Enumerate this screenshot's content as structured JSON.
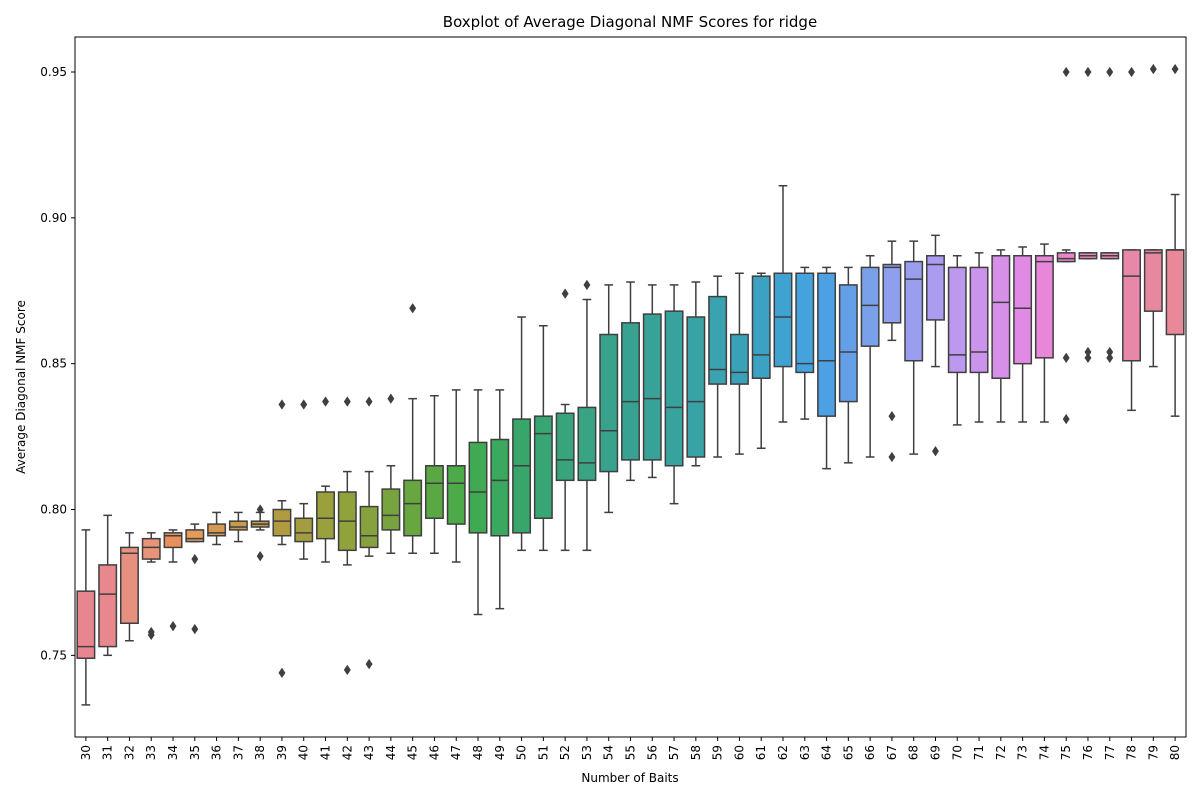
{
  "chart_data": {
    "type": "boxplot",
    "title": "Boxplot of Average Diagonal NMF Scores for ridge",
    "xlabel": "Number of Baits",
    "ylabel": "Average Diagonal NMF Score",
    "ylim": [
      0.722,
      0.962
    ],
    "yticks": [
      0.75,
      0.8,
      0.85,
      0.9,
      0.95
    ],
    "ytick_labels": [
      "0.75",
      "0.80",
      "0.85",
      "0.90",
      "0.95"
    ],
    "grid": false,
    "legend": "none",
    "categories": [
      "30",
      "31",
      "32",
      "33",
      "34",
      "35",
      "36",
      "37",
      "38",
      "39",
      "40",
      "41",
      "42",
      "43",
      "44",
      "45",
      "46",
      "47",
      "48",
      "49",
      "50",
      "51",
      "52",
      "53",
      "54",
      "55",
      "56",
      "57",
      "58",
      "59",
      "60",
      "61",
      "62",
      "63",
      "64",
      "65",
      "66",
      "67",
      "68",
      "69",
      "70",
      "71",
      "72",
      "73",
      "74",
      "75",
      "76",
      "77",
      "78",
      "79",
      "80"
    ],
    "boxes": [
      {
        "x": "30",
        "whislo": 0.733,
        "q1": 0.749,
        "med": 0.753,
        "q3": 0.772,
        "whishi": 0.793,
        "fliers": [],
        "color": "#e88690"
      },
      {
        "x": "31",
        "whislo": 0.75,
        "q1": 0.753,
        "med": 0.771,
        "q3": 0.781,
        "whishi": 0.798,
        "fliers": [],
        "color": "#e8888e"
      },
      {
        "x": "32",
        "whislo": 0.755,
        "q1": 0.761,
        "med": 0.785,
        "q3": 0.787,
        "whishi": 0.792,
        "fliers": [],
        "color": "#e8907f"
      },
      {
        "x": "33",
        "whislo": 0.782,
        "q1": 0.783,
        "med": 0.787,
        "q3": 0.79,
        "whishi": 0.792,
        "fliers": [
          0.757,
          0.758
        ],
        "color": "#e89478"
      },
      {
        "x": "34",
        "whislo": 0.782,
        "q1": 0.787,
        "med": 0.791,
        "q3": 0.792,
        "whishi": 0.793,
        "fliers": [
          0.76
        ],
        "color": "#e8905c"
      },
      {
        "x": "35",
        "whislo": 0.789,
        "q1": 0.789,
        "med": 0.79,
        "q3": 0.793,
        "whishi": 0.795,
        "fliers": [
          0.783,
          0.759
        ],
        "color": "#e39a5a"
      },
      {
        "x": "36",
        "whislo": 0.788,
        "q1": 0.791,
        "med": 0.792,
        "q3": 0.795,
        "whishi": 0.799,
        "fliers": [],
        "color": "#d49a52"
      },
      {
        "x": "37",
        "whislo": 0.789,
        "q1": 0.793,
        "med": 0.794,
        "q3": 0.796,
        "whishi": 0.799,
        "fliers": [],
        "color": "#c89a4c"
      },
      {
        "x": "38",
        "whislo": 0.793,
        "q1": 0.794,
        "med": 0.795,
        "q3": 0.796,
        "whishi": 0.799,
        "fliers": [
          0.8,
          0.784
        ],
        "color": "#bf9c4a"
      },
      {
        "x": "39",
        "whislo": 0.788,
        "q1": 0.791,
        "med": 0.796,
        "q3": 0.8,
        "whishi": 0.803,
        "fliers": [
          0.836,
          0.744
        ],
        "color": "#b19a40"
      },
      {
        "x": "40",
        "whislo": 0.783,
        "q1": 0.789,
        "med": 0.792,
        "q3": 0.797,
        "whishi": 0.802,
        "fliers": [
          0.836
        ],
        "color": "#a49c40"
      },
      {
        "x": "41",
        "whislo": 0.782,
        "q1": 0.79,
        "med": 0.797,
        "q3": 0.806,
        "whishi": 0.808,
        "fliers": [
          0.837
        ],
        "color": "#9aa03c"
      },
      {
        "x": "42",
        "whislo": 0.781,
        "q1": 0.786,
        "med": 0.796,
        "q3": 0.806,
        "whishi": 0.813,
        "fliers": [
          0.837,
          0.745
        ],
        "color": "#90a23c"
      },
      {
        "x": "43",
        "whislo": 0.784,
        "q1": 0.787,
        "med": 0.791,
        "q3": 0.801,
        "whishi": 0.813,
        "fliers": [
          0.837,
          0.747
        ],
        "color": "#86a23e"
      },
      {
        "x": "44",
        "whislo": 0.785,
        "q1": 0.793,
        "med": 0.798,
        "q3": 0.807,
        "whishi": 0.815,
        "fliers": [
          0.838
        ],
        "color": "#78a440"
      },
      {
        "x": "45",
        "whislo": 0.785,
        "q1": 0.791,
        "med": 0.802,
        "q3": 0.81,
        "whishi": 0.838,
        "fliers": [
          0.869
        ],
        "color": "#68a640"
      },
      {
        "x": "46",
        "whislo": 0.785,
        "q1": 0.797,
        "med": 0.809,
        "q3": 0.815,
        "whishi": 0.839,
        "fliers": [],
        "color": "#5aa843"
      },
      {
        "x": "47",
        "whislo": 0.782,
        "q1": 0.795,
        "med": 0.809,
        "q3": 0.815,
        "whishi": 0.841,
        "fliers": [],
        "color": "#4caa48"
      },
      {
        "x": "48",
        "whislo": 0.764,
        "q1": 0.792,
        "med": 0.806,
        "q3": 0.823,
        "whishi": 0.841,
        "fliers": [],
        "color": "#40aa52"
      },
      {
        "x": "49",
        "whislo": 0.766,
        "q1": 0.791,
        "med": 0.81,
        "q3": 0.824,
        "whishi": 0.841,
        "fliers": [],
        "color": "#3aa85e"
      },
      {
        "x": "50",
        "whislo": 0.786,
        "q1": 0.792,
        "med": 0.815,
        "q3": 0.831,
        "whishi": 0.866,
        "fliers": [],
        "color": "#38a66a"
      },
      {
        "x": "51",
        "whislo": 0.786,
        "q1": 0.797,
        "med": 0.826,
        "q3": 0.832,
        "whishi": 0.863,
        "fliers": [],
        "color": "#38a674"
      },
      {
        "x": "52",
        "whislo": 0.786,
        "q1": 0.81,
        "med": 0.817,
        "q3": 0.833,
        "whishi": 0.836,
        "fliers": [
          0.874
        ],
        "color": "#38a47c"
      },
      {
        "x": "53",
        "whislo": 0.786,
        "q1": 0.81,
        "med": 0.816,
        "q3": 0.835,
        "whishi": 0.872,
        "fliers": [
          0.877
        ],
        "color": "#38a484"
      },
      {
        "x": "54",
        "whislo": 0.799,
        "q1": 0.813,
        "med": 0.827,
        "q3": 0.86,
        "whishi": 0.877,
        "fliers": [],
        "color": "#38a28c"
      },
      {
        "x": "55",
        "whislo": 0.81,
        "q1": 0.817,
        "med": 0.837,
        "q3": 0.864,
        "whishi": 0.878,
        "fliers": [],
        "color": "#38a292"
      },
      {
        "x": "56",
        "whislo": 0.811,
        "q1": 0.817,
        "med": 0.838,
        "q3": 0.867,
        "whishi": 0.877,
        "fliers": [],
        "color": "#38a298"
      },
      {
        "x": "57",
        "whislo": 0.802,
        "q1": 0.815,
        "med": 0.835,
        "q3": 0.868,
        "whishi": 0.877,
        "fliers": [],
        "color": "#38a29e"
      },
      {
        "x": "58",
        "whislo": 0.815,
        "q1": 0.818,
        "med": 0.837,
        "q3": 0.866,
        "whishi": 0.878,
        "fliers": [],
        "color": "#38a2a6"
      },
      {
        "x": "59",
        "whislo": 0.818,
        "q1": 0.843,
        "med": 0.848,
        "q3": 0.873,
        "whishi": 0.88,
        "fliers": [],
        "color": "#3aa2b0"
      },
      {
        "x": "60",
        "whislo": 0.819,
        "q1": 0.843,
        "med": 0.847,
        "q3": 0.86,
        "whishi": 0.881,
        "fliers": [],
        "color": "#3aa2b8"
      },
      {
        "x": "61",
        "whislo": 0.821,
        "q1": 0.845,
        "med": 0.853,
        "q3": 0.88,
        "whishi": 0.881,
        "fliers": [],
        "color": "#3ca2c4"
      },
      {
        "x": "62",
        "whislo": 0.83,
        "q1": 0.849,
        "med": 0.866,
        "q3": 0.881,
        "whishi": 0.911,
        "fliers": [],
        "color": "#40a2d0"
      },
      {
        "x": "63",
        "whislo": 0.831,
        "q1": 0.847,
        "med": 0.85,
        "q3": 0.881,
        "whishi": 0.883,
        "fliers": [],
        "color": "#44a2dc"
      },
      {
        "x": "64",
        "whislo": 0.814,
        "q1": 0.832,
        "med": 0.851,
        "q3": 0.881,
        "whishi": 0.883,
        "fliers": [],
        "color": "#4ea0e4"
      },
      {
        "x": "65",
        "whislo": 0.816,
        "q1": 0.837,
        "med": 0.854,
        "q3": 0.877,
        "whishi": 0.883,
        "fliers": [],
        "color": "#64a0e8"
      },
      {
        "x": "66",
        "whislo": 0.818,
        "q1": 0.856,
        "med": 0.87,
        "q3": 0.883,
        "whishi": 0.887,
        "fliers": [],
        "color": "#7aa0ea"
      },
      {
        "x": "67",
        "whislo": 0.858,
        "q1": 0.864,
        "med": 0.883,
        "q3": 0.884,
        "whishi": 0.892,
        "fliers": [
          0.832,
          0.818
        ],
        "color": "#8ea0ec"
      },
      {
        "x": "68",
        "whislo": 0.819,
        "q1": 0.851,
        "med": 0.879,
        "q3": 0.885,
        "whishi": 0.892,
        "fliers": [],
        "color": "#9a9eee"
      },
      {
        "x": "69",
        "whislo": 0.849,
        "q1": 0.865,
        "med": 0.884,
        "q3": 0.887,
        "whishi": 0.894,
        "fliers": [
          0.82
        ],
        "color": "#ac9cf0"
      },
      {
        "x": "70",
        "whislo": 0.829,
        "q1": 0.847,
        "med": 0.853,
        "q3": 0.883,
        "whishi": 0.887,
        "fliers": [],
        "color": "#bc98ee"
      },
      {
        "x": "71",
        "whislo": 0.83,
        "q1": 0.847,
        "med": 0.854,
        "q3": 0.883,
        "whishi": 0.888,
        "fliers": [],
        "color": "#ca94ec"
      },
      {
        "x": "72",
        "whislo": 0.83,
        "q1": 0.845,
        "med": 0.871,
        "q3": 0.887,
        "whishi": 0.889,
        "fliers": [],
        "color": "#d690e8"
      },
      {
        "x": "73",
        "whislo": 0.83,
        "q1": 0.85,
        "med": 0.869,
        "q3": 0.887,
        "whishi": 0.89,
        "fliers": [],
        "color": "#e08ae6"
      },
      {
        "x": "74",
        "whislo": 0.83,
        "q1": 0.852,
        "med": 0.885,
        "q3": 0.887,
        "whishi": 0.891,
        "fliers": [],
        "color": "#e886d8"
      },
      {
        "x": "75",
        "whislo": 0.885,
        "q1": 0.885,
        "med": 0.886,
        "q3": 0.888,
        "whishi": 0.889,
        "fliers": [
          0.95,
          0.852,
          0.831
        ],
        "color": "#ea86c8"
      },
      {
        "x": "76",
        "whislo": 0.886,
        "q1": 0.886,
        "med": 0.887,
        "q3": 0.888,
        "whishi": 0.888,
        "fliers": [
          0.95,
          0.854,
          0.852
        ],
        "color": "#ea86bc"
      },
      {
        "x": "77",
        "whislo": 0.886,
        "q1": 0.886,
        "med": 0.887,
        "q3": 0.888,
        "whishi": 0.888,
        "fliers": [
          0.95,
          0.854,
          0.852
        ],
        "color": "#ea88b0"
      },
      {
        "x": "78",
        "whislo": 0.834,
        "q1": 0.851,
        "med": 0.88,
        "q3": 0.889,
        "whishi": 0.889,
        "fliers": [
          0.95
        ],
        "color": "#e888a8"
      },
      {
        "x": "79",
        "whislo": 0.849,
        "q1": 0.868,
        "med": 0.888,
        "q3": 0.889,
        "whishi": 0.889,
        "fliers": [
          0.951
        ],
        "color": "#e888a0"
      },
      {
        "x": "80",
        "whislo": 0.832,
        "q1": 0.86,
        "med": 0.889,
        "q3": 0.889,
        "whishi": 0.908,
        "fliers": [
          0.951
        ],
        "color": "#e88898"
      }
    ]
  }
}
